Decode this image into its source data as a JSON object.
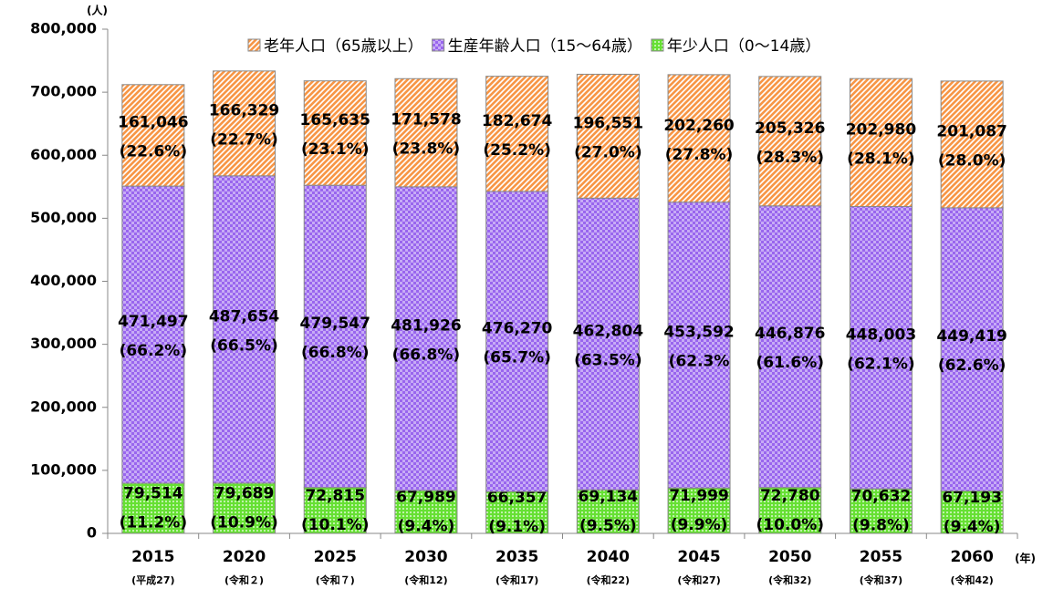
{
  "chart_data": {
    "type": "stacked_bar",
    "y_unit": "(人)",
    "x_unit": "(年)",
    "categories": [
      "2015",
      "2020",
      "2025",
      "2030",
      "2035",
      "2040",
      "2045",
      "2050",
      "2055",
      "2060"
    ],
    "era_labels": [
      "(平成27)",
      "(令和２)",
      "(令和７)",
      "(令和12)",
      "(令和17)",
      "(令和22)",
      "(令和27)",
      "(令和32)",
      "(令和37)",
      "(令和42)"
    ],
    "series": [
      {
        "name": "年少人口（0～14歳）",
        "color": "#66e033",
        "values": [
          79514,
          79689,
          72815,
          67989,
          66357,
          69134,
          71999,
          72780,
          70632,
          67193
        ],
        "value_labels": [
          "79,514",
          "79,689",
          "72,815",
          "67,989",
          "66,357",
          "69,134",
          "71,999",
          "72,780",
          "70,632",
          "67,193"
        ],
        "percent_labels": [
          "(11.2%)",
          "(10.9%)",
          "(10.1%)",
          "(9.4%)",
          "(9.1%)",
          "(9.5%)",
          "(9.9%)",
          "(10.0%)",
          "(9.8%)",
          "(9.4%)"
        ]
      },
      {
        "name": "生産年齢人口（15～64歳）",
        "color": "#9966ee",
        "values": [
          471497,
          487654,
          479547,
          481926,
          476270,
          462804,
          453592,
          446876,
          448003,
          449419
        ],
        "value_labels": [
          "471,497",
          "487,654",
          "479,547",
          "481,926",
          "476,270",
          "462,804",
          "453,592",
          "446,876",
          "448,003",
          "449,419"
        ],
        "percent_labels": [
          "(66.2%)",
          "(66.5%)",
          "(66.8%)",
          "(66.8%)",
          "(65.7%)",
          "(63.5%)",
          "(62.3%",
          "(61.6%)",
          "(62.1%)",
          "(62.6%)"
        ]
      },
      {
        "name": "老年人口（65歳以上）",
        "color": "#f79646",
        "values": [
          161046,
          166329,
          165635,
          171578,
          182674,
          196551,
          202260,
          205326,
          202980,
          201087
        ],
        "value_labels": [
          "161,046",
          "166,329",
          "165,635",
          "171,578",
          "182,674",
          "196,551",
          "202,260",
          "205,326",
          "202,980",
          "201,087"
        ],
        "percent_labels": [
          "(22.6%)",
          "(22.7%)",
          "(23.1%)",
          "(23.8%)",
          "(25.2%)",
          "(27.0%)",
          "(27.8%)",
          "(28.3%)",
          "(28.1%)",
          "(28.0%)"
        ]
      }
    ],
    "ylim": [
      0,
      800000
    ],
    "yticks": [
      0,
      {
        "value": 100000,
        "label": "100,000"
      },
      {
        "value": 200000,
        "label": "200,000"
      },
      {
        "value": 300000,
        "label": "300,000"
      },
      {
        "value": 400000,
        "label": "400,000"
      },
      {
        "value": 500000,
        "label": "500,000"
      },
      {
        "value": 600000,
        "label": "600,000"
      },
      {
        "value": 700000,
        "label": "700,000"
      },
      {
        "value": 800000,
        "label": "800,000"
      }
    ],
    "legend_position": "top"
  }
}
